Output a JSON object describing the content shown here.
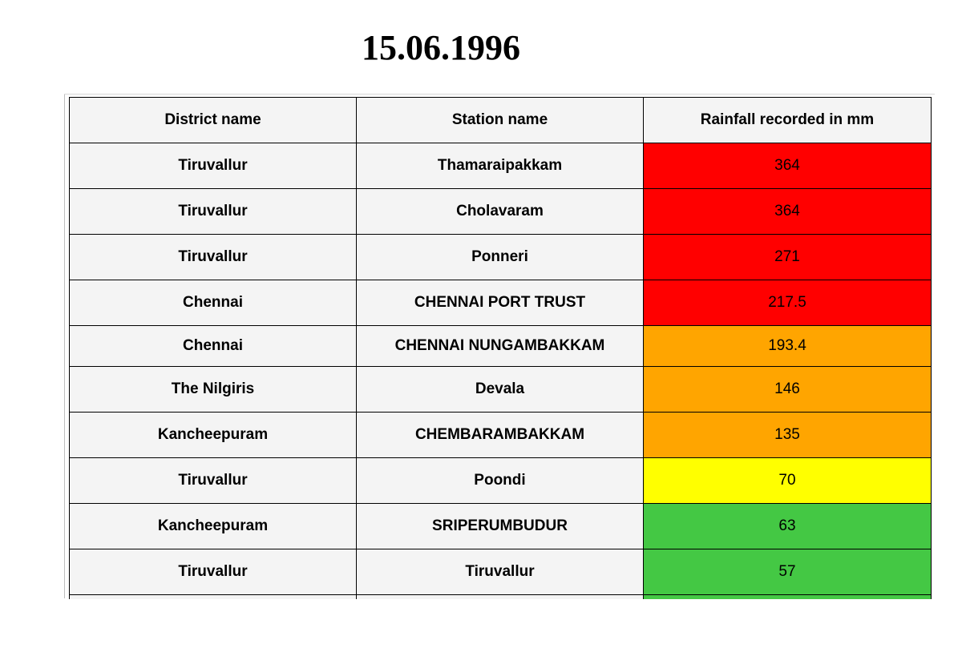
{
  "title": "15.06.1996",
  "table": {
    "headers": [
      "District name",
      "Station name",
      "Rainfall recorded in mm"
    ],
    "rows": [
      {
        "district": "Tiruvallur",
        "station": "Thamaraipakkam",
        "rainfall": "364",
        "color": "#ff0000"
      },
      {
        "district": "Tiruvallur",
        "station": "Cholavaram",
        "rainfall": "364",
        "color": "#ff0000"
      },
      {
        "district": "Tiruvallur",
        "station": "Ponneri",
        "rainfall": "271",
        "color": "#ff0000"
      },
      {
        "district": "Chennai",
        "station": "CHENNAI PORT TRUST",
        "rainfall": "217.5",
        "color": "#ff0000"
      },
      {
        "district": "Chennai",
        "station": "CHENNAI NUNGAMBAKKAM",
        "rainfall": "193.4",
        "color": "#ffa500"
      },
      {
        "district": "The Nilgiris",
        "station": "Devala",
        "rainfall": "146",
        "color": "#ffa500"
      },
      {
        "district": "Kancheepuram",
        "station": "CHEMBARAMBAKKAM",
        "rainfall": "135",
        "color": "#ffa500"
      },
      {
        "district": "Tiruvallur",
        "station": "Poondi",
        "rainfall": "70",
        "color": "#ffff00"
      },
      {
        "district": "Kancheepuram",
        "station": "SRIPERUMBUDUR",
        "rainfall": "63",
        "color": "#44c844"
      },
      {
        "district": "Tiruvallur",
        "station": "Tiruvallur",
        "rainfall": "57",
        "color": "#44c844"
      },
      {
        "district": "",
        "station": "",
        "rainfall": "",
        "color": "#44c844"
      }
    ]
  }
}
